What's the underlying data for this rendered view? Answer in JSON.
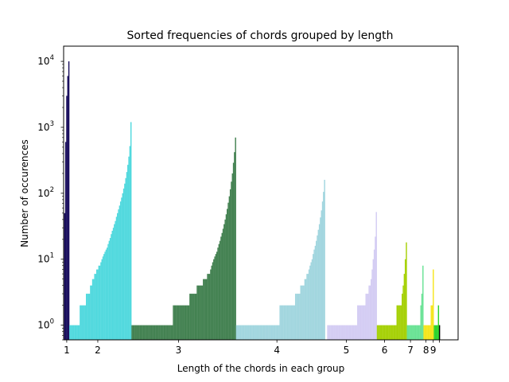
{
  "chart_data": {
    "type": "bar",
    "title": "Sorted frequencies of chords grouped by length",
    "xlabel": "Length of the chords in each group",
    "ylabel": "Number of occurences",
    "yscale": "log",
    "ylim": [
      0.6,
      17000
    ],
    "yticks": [
      {
        "value": 1,
        "base": "10",
        "exp": "0"
      },
      {
        "value": 10,
        "base": "10",
        "exp": "1"
      },
      {
        "value": 100,
        "base": "10",
        "exp": "2"
      },
      {
        "value": 1000,
        "base": "10",
        "exp": "3"
      },
      {
        "value": 10000,
        "base": "10",
        "exp": "4"
      }
    ],
    "x_unit": "chord index (sorted by frequency within each length group)",
    "xlim": [
      -1,
      380
    ],
    "groups": [
      {
        "label": "1",
        "color": "#1a0f5e",
        "start": 0,
        "count": 5,
        "tick_pos": 2,
        "values": [
          50,
          600,
          3000,
          6000,
          10000
        ]
      },
      {
        "label": "2",
        "color": "#52d9de",
        "start": 5,
        "count": 60,
        "tick_pos": 32,
        "values": [
          1,
          1,
          1,
          1,
          1,
          1,
          1,
          1,
          1,
          1,
          2,
          2,
          2,
          2,
          2,
          2,
          3,
          3,
          3,
          3,
          4,
          4,
          5,
          5,
          6,
          6,
          7,
          7,
          8,
          8,
          9,
          10,
          11,
          12,
          13,
          14,
          15,
          17,
          19,
          21,
          24,
          27,
          30,
          34,
          38,
          44,
          50,
          57,
          65,
          75,
          86,
          100,
          118,
          140,
          170,
          210,
          270,
          360,
          520,
          1200
        ]
      },
      {
        "label": "3",
        "color": "#448252",
        "start": 65,
        "count": 101,
        "tick_pos": 110,
        "values": [
          1,
          1,
          1,
          1,
          1,
          1,
          1,
          1,
          1,
          1,
          1,
          1,
          1,
          1,
          1,
          1,
          1,
          1,
          1,
          1,
          1,
          1,
          1,
          1,
          1,
          1,
          1,
          1,
          1,
          1,
          1,
          1,
          1,
          1,
          1,
          1,
          1,
          1,
          1,
          1,
          2,
          2,
          2,
          2,
          2,
          2,
          2,
          2,
          2,
          2,
          2,
          2,
          2,
          2,
          2,
          2,
          3,
          3,
          3,
          3,
          3,
          3,
          3,
          4,
          4,
          4,
          4,
          4,
          4,
          5,
          5,
          5,
          5,
          6,
          6,
          6,
          7,
          8,
          9,
          10,
          11,
          12,
          13,
          15,
          17,
          19,
          22,
          25,
          29,
          34,
          40,
          48,
          58,
          72,
          90,
          115,
          150,
          200,
          290,
          420,
          700
        ]
      },
      {
        "label": "4",
        "color": "#a2d6df",
        "start": 166,
        "count": 88,
        "tick_pos": 205,
        "values": [
          1,
          1,
          1,
          1,
          1,
          1,
          1,
          1,
          1,
          1,
          1,
          1,
          1,
          1,
          1,
          1,
          1,
          1,
          1,
          1,
          1,
          1,
          1,
          1,
          1,
          1,
          1,
          1,
          1,
          1,
          1,
          1,
          1,
          1,
          1,
          1,
          1,
          1,
          1,
          1,
          1,
          1,
          2,
          2,
          2,
          2,
          2,
          2,
          2,
          2,
          2,
          2,
          2,
          2,
          2,
          2,
          2,
          3,
          3,
          3,
          3,
          3,
          4,
          4,
          4,
          4,
          5,
          5,
          6,
          6,
          7,
          8,
          9,
          10,
          12,
          14,
          16,
          19,
          23,
          28,
          34,
          43,
          55,
          75,
          105,
          160
        ]
      },
      {
        "label": "5",
        "color": "#d4cdf3",
        "start": 254,
        "count": 48,
        "tick_pos": 272,
        "values": [
          1,
          1,
          1,
          1,
          1,
          1,
          1,
          1,
          1,
          1,
          1,
          1,
          1,
          1,
          1,
          1,
          1,
          1,
          1,
          1,
          1,
          1,
          1,
          1,
          1,
          1,
          1,
          1,
          1,
          2,
          2,
          2,
          2,
          2,
          2,
          2,
          2,
          3,
          3,
          3,
          4,
          4,
          5,
          7,
          10,
          14,
          22,
          52
        ]
      },
      {
        "label": "6",
        "color": "#a6d108",
        "start": 302,
        "count": 29,
        "tick_pos": 309,
        "values": [
          1,
          1,
          1,
          1,
          1,
          1,
          1,
          1,
          1,
          1,
          1,
          1,
          1,
          1,
          1,
          1,
          1,
          1,
          1,
          2,
          2,
          2,
          2,
          2,
          3,
          4,
          6,
          10,
          18
        ]
      },
      {
        "label": "7",
        "color": "#6ae295",
        "start": 331,
        "count": 16,
        "tick_pos": 334,
        "values": [
          1,
          1,
          1,
          1,
          1,
          1,
          1,
          1,
          1,
          1,
          1,
          1,
          1,
          2,
          3,
          8
        ]
      },
      {
        "label": "8",
        "color": "#f5e51e",
        "start": 347,
        "count": 10,
        "tick_pos": 349,
        "values": [
          1,
          1,
          1,
          1,
          1,
          1,
          1,
          2,
          2,
          7
        ]
      },
      {
        "label": "9",
        "color": "#2dd42d",
        "start": 357,
        "count": 5,
        "tick_pos": 356,
        "values": [
          1,
          1,
          1,
          1,
          2
        ]
      },
      {
        "label": "",
        "color": "#000000",
        "start": 362,
        "count": 1,
        "tick_pos": 362,
        "values": [
          1
        ]
      }
    ]
  }
}
